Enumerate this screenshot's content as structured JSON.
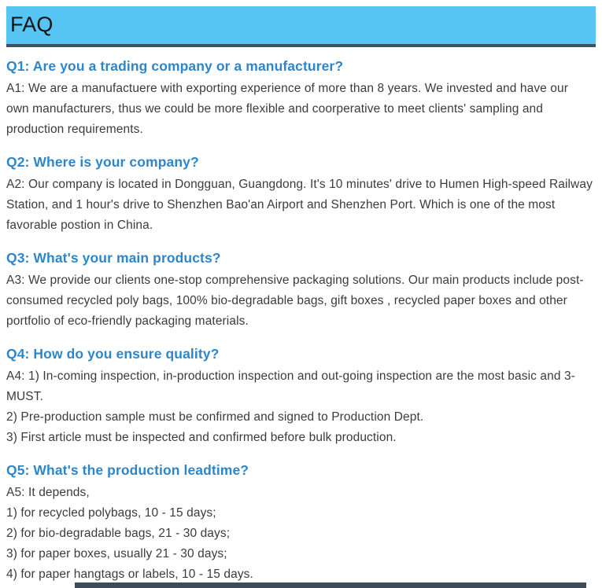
{
  "header": {
    "title": "FAQ"
  },
  "colors": {
    "header_bg": "#57c5f3",
    "header_border": "#3e5266",
    "header_text": "#121212",
    "question_color": "#2e86c9",
    "body_color": "#3b3b3b",
    "bottom_bar": "#3e4a58"
  },
  "faq_items": [
    {
      "question": "Q1: Are you a trading company or a manufacturer?",
      "answer_paragraphs": [
        "A1: We are a manufactuere with exporting experience of more than 8 years. We invested and have our own manufacturers, thus we could be more flexible and coorperative to meet clients' sampling and production requirements."
      ]
    },
    {
      "question": "Q2: Where is your company?",
      "answer_paragraphs": [
        "A2: Our company is located in Dongguan, Guangdong. It's 10 minutes' drive to Humen High-speed Railway Station, and 1 hour's drive to Shenzhen Bao'an Airport and Shenzhen Port. Which is one of the most favorable postion in China."
      ]
    },
    {
      "question": "Q3: What's your main products?",
      "answer_paragraphs": [
        "A3: We provide our clients one-stop comprehensive packaging solutions. Our main products include post-consumed recycled poly bags, 100% bio-degradable bags, gift boxes , recycled paper boxes and other portfolio of eco-friendly packaging materials."
      ]
    },
    {
      "question": "Q4: How do you ensure quality?",
      "answer_paragraphs": [
        "A4: 1) In-coming inspection, in-production inspection and out-going inspection are the most basic and 3-MUST.",
        "2) Pre-production sample must be confirmed and signed to Production Dept.",
        "3) First article must be inspected and confirmed before bulk production."
      ]
    },
    {
      "question": "Q5: What's the production leadtime?",
      "answer_paragraphs": [
        "A5: It depends,",
        "1) for recycled polybags, 10 - 15 days;",
        "2) for bio-degradable bags, 21 - 30 days;",
        "3) for paper boxes, usually 21 - 30 days;",
        "4) for paper hangtags or labels, 10 - 15 days."
      ]
    }
  ]
}
